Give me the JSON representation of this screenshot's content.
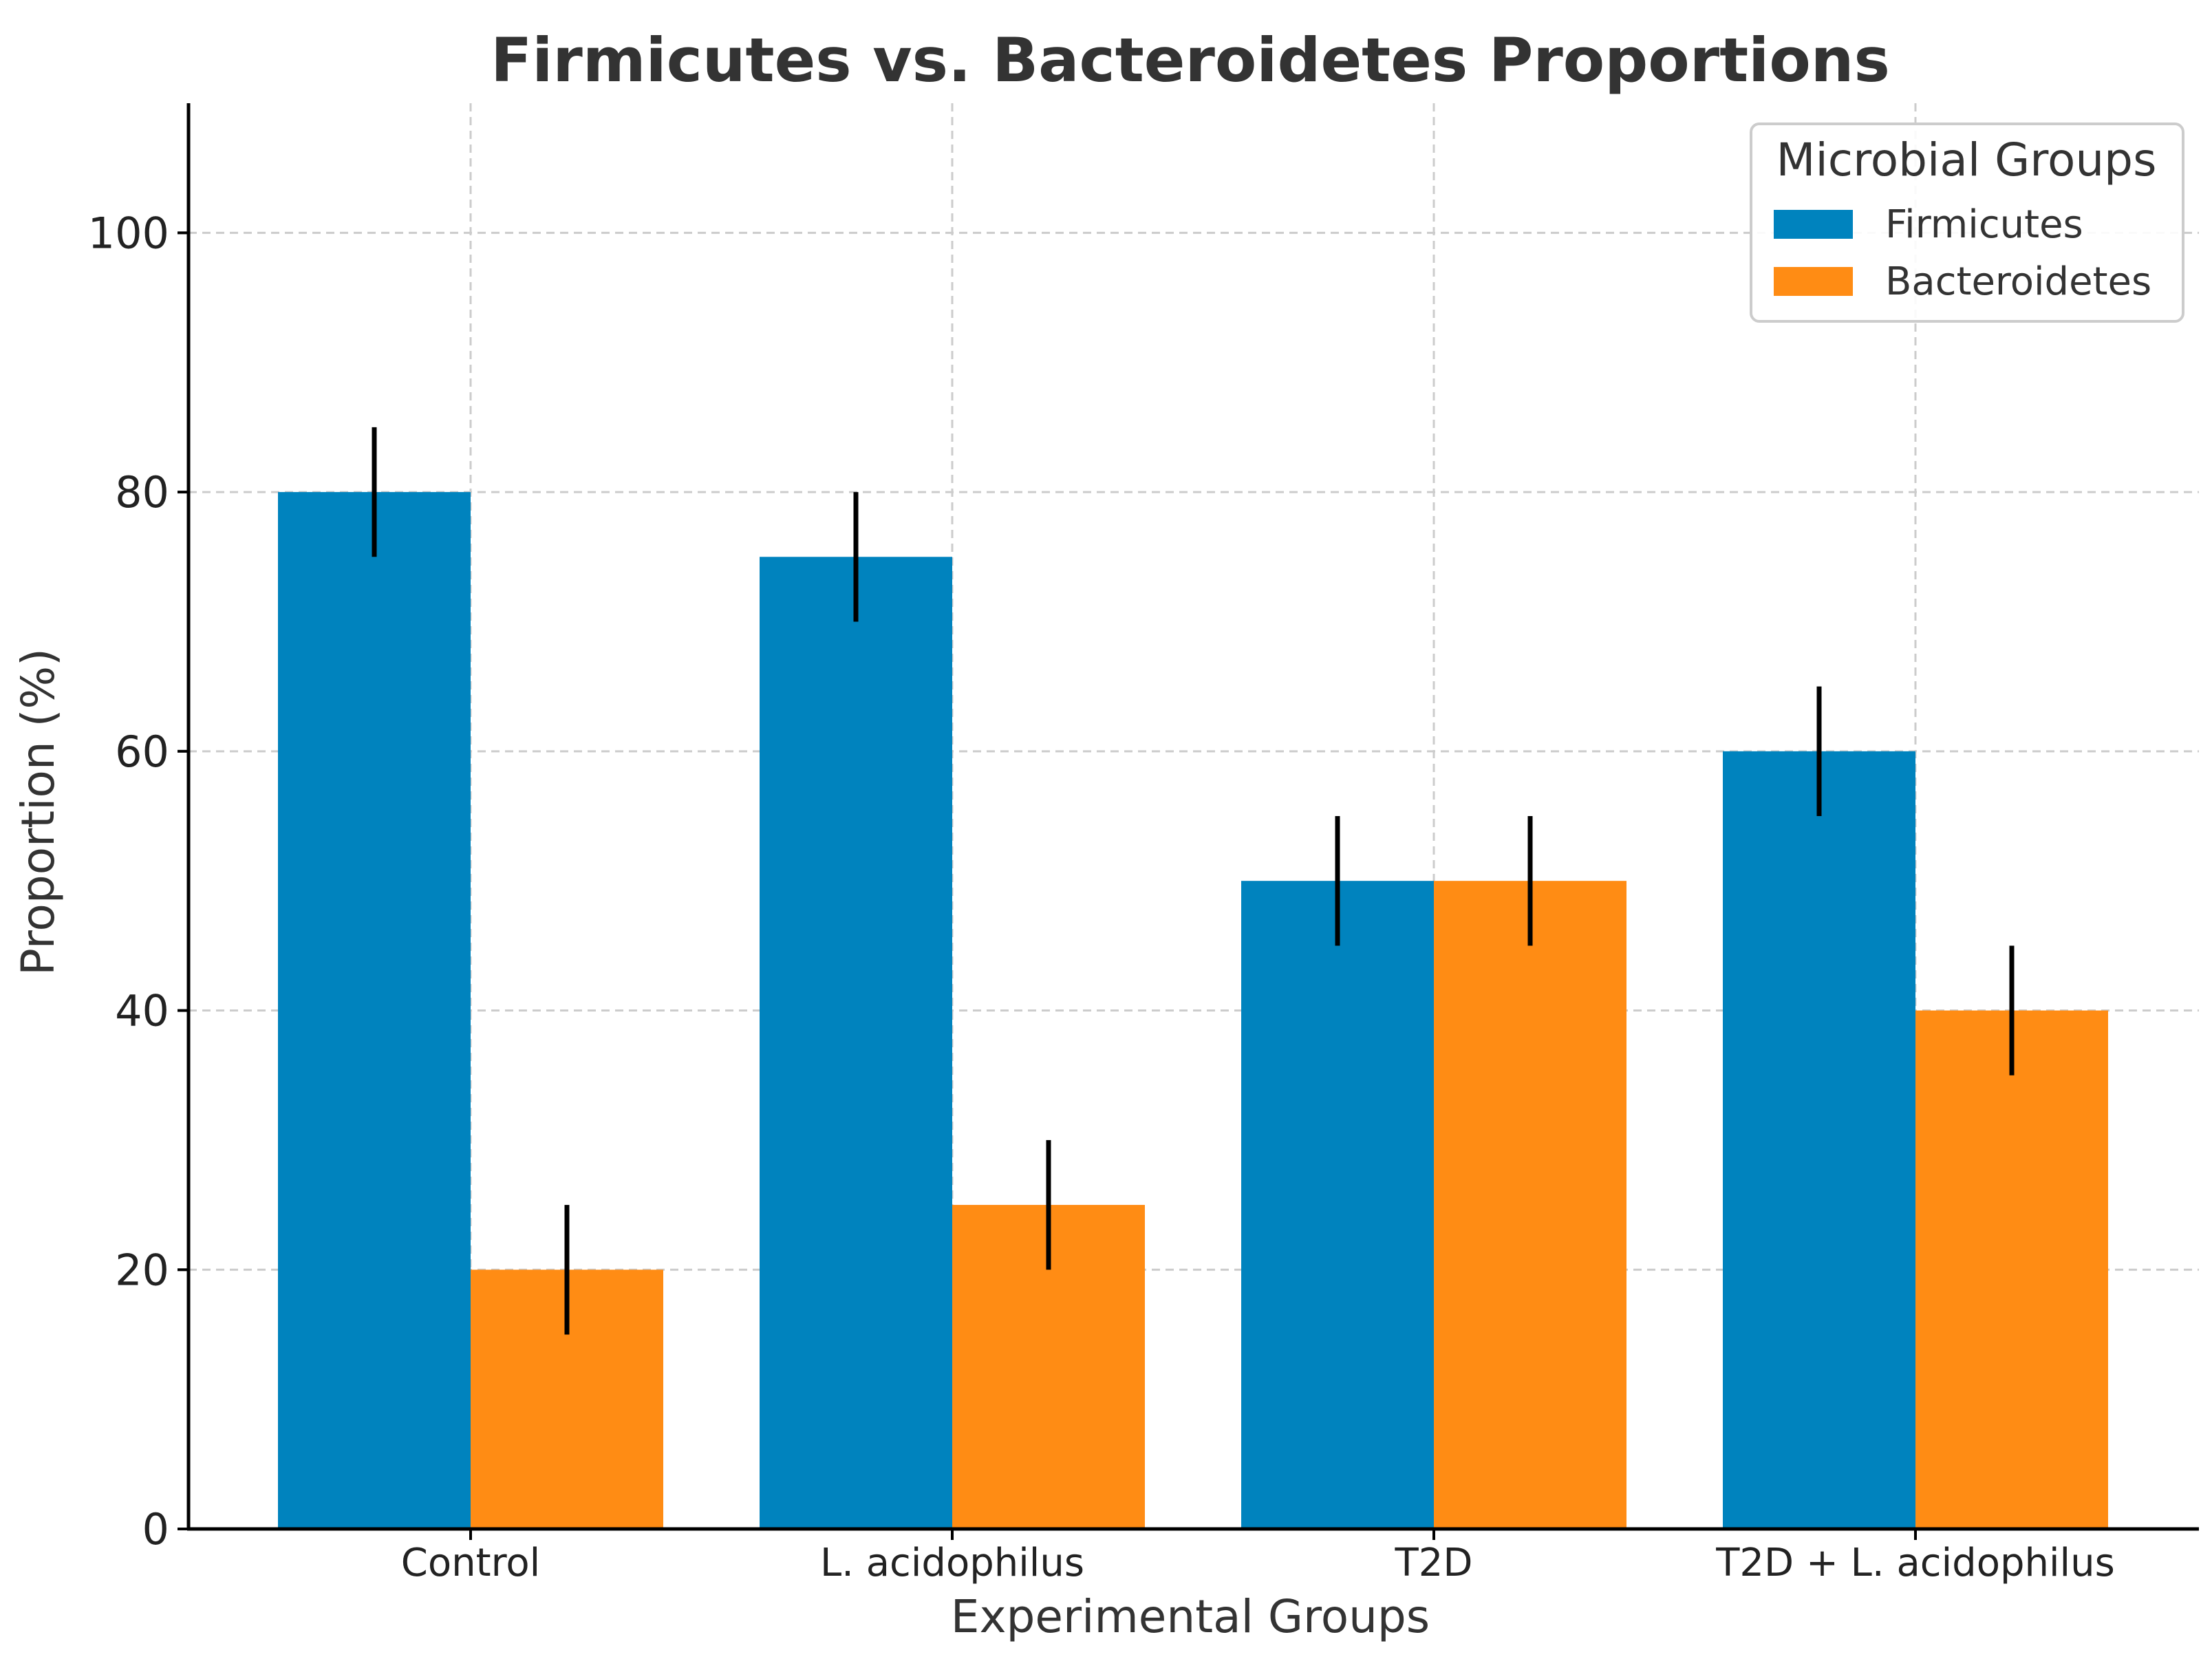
{
  "chart_data": {
    "type": "bar",
    "title": "Firmicutes vs. Bacteroidetes Proportions",
    "xlabel": "Experimental Groups",
    "ylabel": "Proportion (%)",
    "ylim": [
      0,
      110
    ],
    "yticks": [
      0,
      20,
      40,
      60,
      80,
      100
    ],
    "grid": true,
    "categories": [
      "Control",
      "L. acidophilus",
      "T2D",
      "T2D + L. acidophilus"
    ],
    "series": [
      {
        "name": "Firmicutes",
        "color": "#0083BE",
        "values": [
          80,
          75,
          50,
          60
        ],
        "errors": [
          5,
          5,
          5,
          5
        ]
      },
      {
        "name": "Bacteroidetes",
        "color": "#FF8C14",
        "values": [
          20,
          25,
          50,
          40
        ],
        "errors": [
          5,
          5,
          5,
          5
        ]
      }
    ],
    "legend": {
      "title": "Microbial Groups",
      "position": "top-right"
    }
  }
}
